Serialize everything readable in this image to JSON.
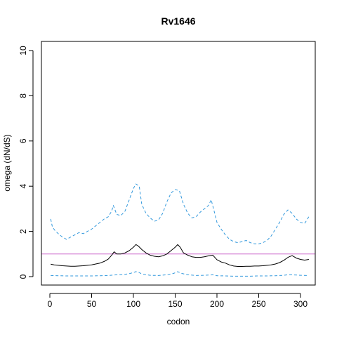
{
  "chart_data": {
    "type": "line",
    "title": "Rv1646",
    "xlabel": "codon",
    "ylabel": "omega (dN/dS)",
    "xlim": [
      0,
      315
    ],
    "ylim": [
      0,
      10.5
    ],
    "x_ticks": [
      0,
      50,
      100,
      150,
      200,
      250,
      300
    ],
    "y_ticks": [
      0,
      2,
      4,
      6,
      8,
      10
    ],
    "grid": false,
    "reference_line": {
      "y": 1,
      "color": "#cc66cc"
    },
    "series": [
      {
        "role": "upper-bound",
        "style": "dashed",
        "color": "#3399dd",
        "x": [
          1,
          3,
          6,
          10,
          15,
          20,
          25,
          30,
          35,
          40,
          45,
          50,
          55,
          60,
          65,
          70,
          74,
          76,
          80,
          85,
          90,
          95,
          100,
          103,
          107,
          110,
          115,
          120,
          125,
          130,
          135,
          140,
          145,
          150,
          155,
          160,
          165,
          170,
          175,
          180,
          185,
          190,
          193,
          196,
          200,
          205,
          210,
          215,
          220,
          225,
          230,
          235,
          240,
          245,
          250,
          255,
          260,
          265,
          270,
          275,
          280,
          285,
          290,
          295,
          300,
          305,
          310
        ],
        "values": [
          2.55,
          2.2,
          2.05,
          1.9,
          1.75,
          1.65,
          1.75,
          1.85,
          1.95,
          1.9,
          2.0,
          2.1,
          2.25,
          2.4,
          2.55,
          2.65,
          2.9,
          3.15,
          2.75,
          2.7,
          2.9,
          3.4,
          3.9,
          4.1,
          4.0,
          3.2,
          2.8,
          2.6,
          2.45,
          2.5,
          2.8,
          3.3,
          3.7,
          3.85,
          3.8,
          3.2,
          2.8,
          2.6,
          2.65,
          2.85,
          3.0,
          3.15,
          3.4,
          3.0,
          2.4,
          2.1,
          1.85,
          1.65,
          1.55,
          1.5,
          1.55,
          1.6,
          1.5,
          1.45,
          1.45,
          1.5,
          1.6,
          1.8,
          2.1,
          2.4,
          2.75,
          2.95,
          2.8,
          2.55,
          2.4,
          2.35,
          2.65
        ]
      },
      {
        "role": "estimate",
        "style": "solid",
        "color": "#000000",
        "x": [
          1,
          5,
          10,
          15,
          20,
          25,
          30,
          35,
          40,
          45,
          50,
          55,
          60,
          65,
          70,
          74,
          77,
          80,
          85,
          90,
          95,
          100,
          103,
          106,
          110,
          115,
          120,
          125,
          130,
          135,
          140,
          145,
          150,
          153,
          156,
          160,
          165,
          170,
          175,
          180,
          185,
          190,
          195,
          200,
          205,
          210,
          215,
          220,
          225,
          230,
          235,
          240,
          245,
          250,
          255,
          260,
          265,
          270,
          275,
          280,
          285,
          290,
          295,
          300,
          305,
          310
        ],
        "values": [
          0.55,
          0.52,
          0.5,
          0.48,
          0.47,
          0.46,
          0.46,
          0.47,
          0.48,
          0.5,
          0.52,
          0.56,
          0.6,
          0.67,
          0.78,
          0.95,
          1.1,
          1.0,
          1.0,
          1.05,
          1.15,
          1.3,
          1.42,
          1.35,
          1.2,
          1.05,
          0.95,
          0.9,
          0.88,
          0.92,
          1.0,
          1.15,
          1.3,
          1.42,
          1.3,
          1.05,
          0.95,
          0.88,
          0.85,
          0.85,
          0.88,
          0.92,
          0.95,
          0.75,
          0.65,
          0.6,
          0.52,
          0.47,
          0.45,
          0.45,
          0.46,
          0.46,
          0.47,
          0.47,
          0.48,
          0.5,
          0.52,
          0.56,
          0.62,
          0.72,
          0.85,
          0.93,
          0.82,
          0.76,
          0.73,
          0.76
        ]
      },
      {
        "role": "lower-bound",
        "style": "dashed",
        "color": "#3399dd",
        "x": [
          1,
          10,
          20,
          30,
          40,
          50,
          60,
          70,
          80,
          90,
          95,
          100,
          103,
          106,
          110,
          120,
          130,
          140,
          148,
          153,
          158,
          165,
          175,
          185,
          195,
          200,
          210,
          220,
          230,
          240,
          250,
          260,
          270,
          280,
          285,
          290,
          300,
          310
        ],
        "values": [
          0.05,
          0.04,
          0.03,
          0.03,
          0.03,
          0.03,
          0.04,
          0.05,
          0.08,
          0.1,
          0.13,
          0.18,
          0.22,
          0.2,
          0.12,
          0.06,
          0.05,
          0.08,
          0.14,
          0.22,
          0.14,
          0.08,
          0.05,
          0.06,
          0.08,
          0.04,
          0.03,
          0.02,
          0.02,
          0.02,
          0.03,
          0.03,
          0.04,
          0.06,
          0.08,
          0.08,
          0.06,
          0.05
        ]
      }
    ]
  }
}
